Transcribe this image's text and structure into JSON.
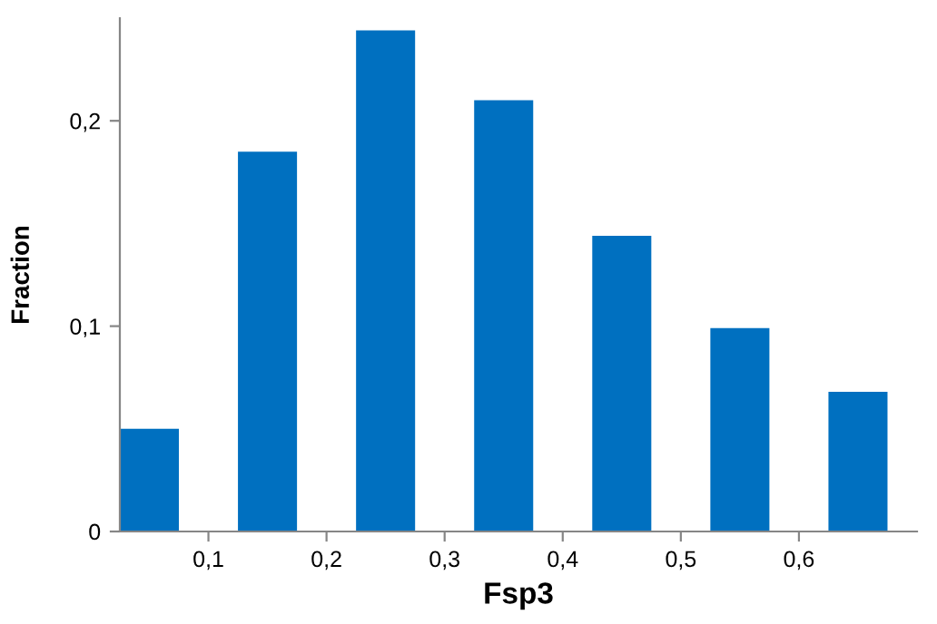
{
  "chart_data": {
    "type": "histogram",
    "xlabel": "Fsp3",
    "ylabel": "Fraction",
    "bins": [
      0,
      0.1,
      0.2,
      0.3,
      0.4,
      0.5,
      0.6,
      0.7
    ],
    "values": [
      0.05,
      0.185,
      0.244,
      0.21,
      0.144,
      0.099,
      0.068
    ],
    "color": "#0070c0",
    "xlim": [
      0.025,
      0.7
    ],
    "xticks": [
      {
        "value": 0.1,
        "label": "0,1"
      },
      {
        "value": 0.2,
        "label": "0,2"
      },
      {
        "value": 0.3,
        "label": "0,3"
      },
      {
        "value": 0.4,
        "label": "0,4"
      },
      {
        "value": 0.5,
        "label": "0,5"
      },
      {
        "value": 0.6,
        "label": "0,6"
      }
    ],
    "ylim": [
      0,
      0.25
    ],
    "yticks": [
      0,
      {
        "value": 0.1,
        "label": "0,1"
      },
      {
        "value": 0.2,
        "label": "0,2"
      }
    ],
    "grid": false,
    "legend": false
  }
}
